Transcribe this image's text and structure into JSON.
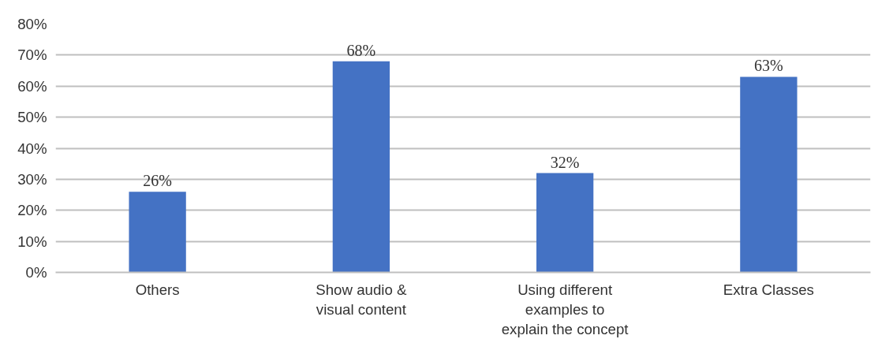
{
  "chart_data": {
    "type": "bar",
    "categories": [
      "Others",
      "Show audio &\nvisual content",
      "Using different\nexamples to\nexplain the concept",
      "Extra Classes"
    ],
    "values": [
      26,
      68,
      32,
      63
    ],
    "value_labels": [
      "26%",
      "68%",
      "32%",
      "63%"
    ],
    "color": "#4472c4",
    "ylim": [
      0,
      80
    ],
    "yticks": [
      {
        "value": 0,
        "label": "0%"
      },
      {
        "value": 10,
        "label": "10%"
      },
      {
        "value": 20,
        "label": "20%"
      },
      {
        "value": 30,
        "label": "30%"
      },
      {
        "value": 40,
        "label": "40%"
      },
      {
        "value": 50,
        "label": "50%"
      },
      {
        "value": 60,
        "label": "60%"
      },
      {
        "value": 70,
        "label": "70%"
      },
      {
        "value": 80,
        "label": "80%"
      }
    ],
    "grid": "y"
  }
}
